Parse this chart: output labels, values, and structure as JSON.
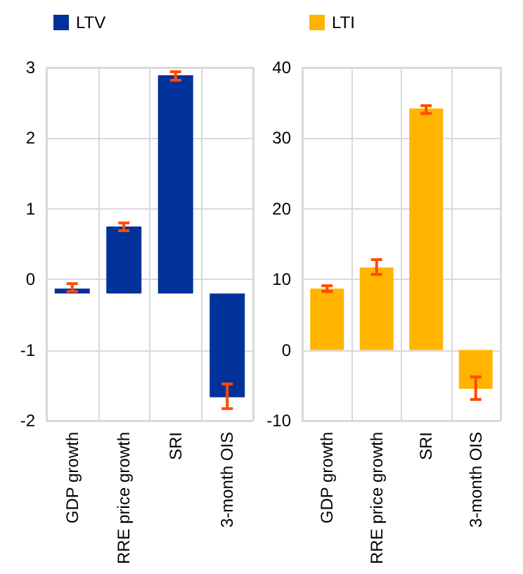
{
  "chart_data": [
    {
      "type": "bar",
      "categories": [
        "GDP growth",
        "RRE price growth",
        "SRI",
        "3-month OIS"
      ],
      "series": [
        {
          "name": "LTV",
          "color": "#003299",
          "values": [
            0.07,
            0.95,
            3.09,
            -1.47
          ],
          "base": [
            -0.2,
            -0.2,
            -0.2,
            -0.2
          ],
          "errors": [
            [
              -0.17,
              -0.06
            ],
            [
              0.69,
              0.8
            ],
            [
              2.82,
              2.94
            ],
            [
              -1.83,
              -1.48
            ]
          ]
        }
      ],
      "ylim": [
        -2,
        3
      ],
      "yticks": [
        -2,
        -1,
        0,
        1,
        2,
        3
      ],
      "grid": true,
      "legend": "top left"
    },
    {
      "type": "bar",
      "categories": [
        "GDP growth",
        "RRE price growth",
        "SRI",
        "3-month OIS"
      ],
      "series": [
        {
          "name": "LTI",
          "color": "#ffb400",
          "values": [
            8.7,
            11.7,
            34.2,
            -5.5
          ],
          "errors": [
            [
              8.3,
              9.1
            ],
            [
              10.7,
              12.8
            ],
            [
              33.5,
              34.6
            ],
            [
              -7.0,
              -3.8
            ]
          ]
        }
      ],
      "ylim": [
        -10,
        40
      ],
      "yticks": [
        -10,
        0,
        10,
        20,
        30,
        40
      ],
      "grid": true,
      "legend": "top left"
    }
  ]
}
